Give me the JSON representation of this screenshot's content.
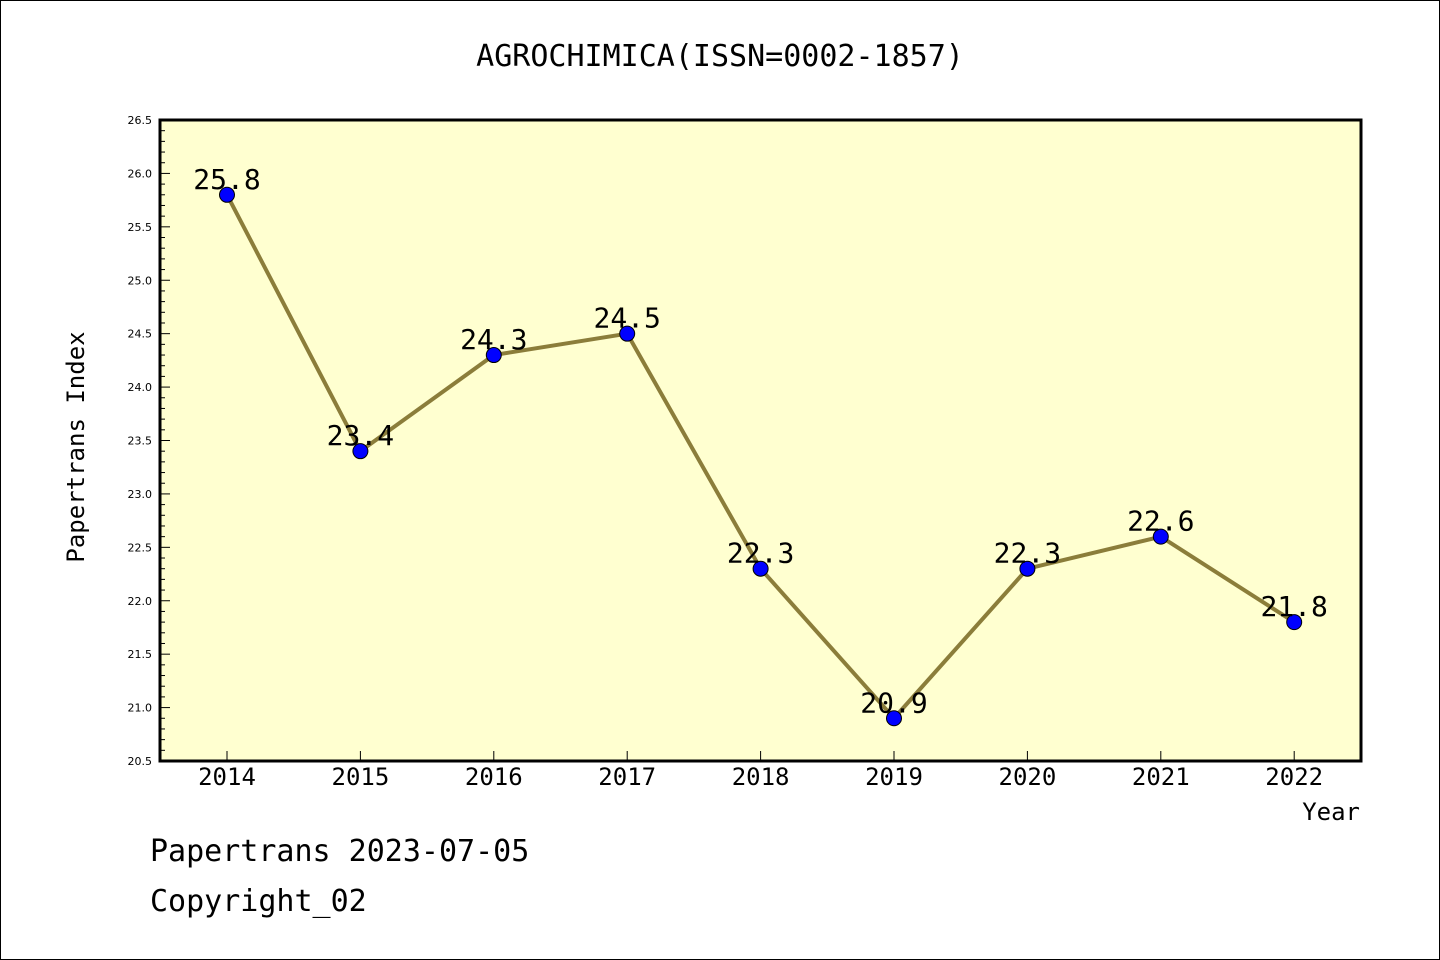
{
  "footer": {
    "stamp": "Papertrans 2023-07-05",
    "copyright": "Copyright_02"
  },
  "colors": {
    "plot_background": "#ffffd0",
    "line": "#8b7d3a",
    "marker": "#0000ff",
    "axis": "#000000"
  },
  "chart_data": {
    "type": "line",
    "title": "AGROCHIMICA(ISSN=0002-1857)",
    "xlabel": "Year",
    "ylabel": "Papertrans Index",
    "categories": [
      "2014",
      "2015",
      "2016",
      "2017",
      "2018",
      "2019",
      "2020",
      "2021",
      "2022"
    ],
    "values": [
      25.8,
      23.4,
      24.3,
      24.5,
      22.3,
      20.9,
      22.3,
      22.6,
      21.8
    ],
    "data_labels": [
      "25.8",
      "23.4",
      "24.3",
      "24.5",
      "22.3",
      "20.9",
      "22.3",
      "22.6",
      "21.8"
    ],
    "ylim": [
      20.5,
      26.5
    ],
    "yticks": [
      "20.5",
      "21.0",
      "21.5",
      "22.0",
      "22.5",
      "23.0",
      "23.5",
      "24.0",
      "24.5",
      "25.0",
      "25.5",
      "26.0",
      "26.5"
    ],
    "grid": false,
    "legend": "none"
  }
}
